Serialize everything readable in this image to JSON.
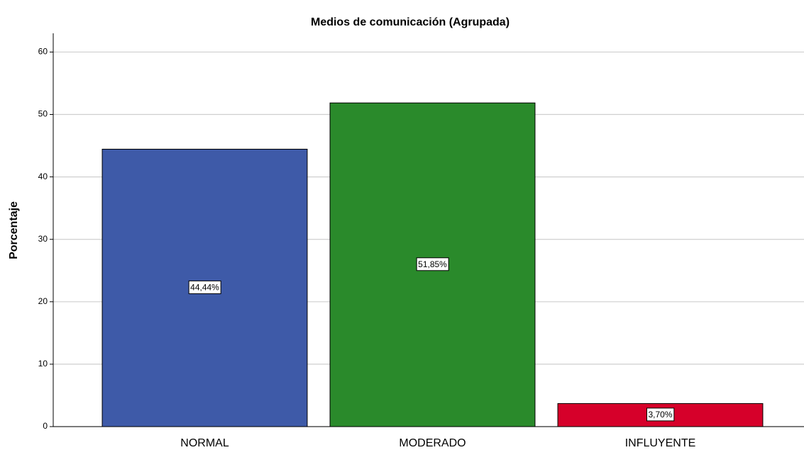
{
  "chart_data": {
    "type": "bar",
    "title": "Medios de comunicación (Agrupada)",
    "y_label": "Porcentaje",
    "categories": [
      "NORMAL",
      "MODERADO",
      "INFLUYENTE"
    ],
    "values": [
      44.44,
      51.85,
      3.7
    ],
    "value_labels": [
      "44,44%",
      "51,85%",
      "3,70%"
    ],
    "colors": [
      "#3e5aa8",
      "#2a8a2b",
      "#d6002a"
    ],
    "ylim": [
      0,
      63
    ],
    "yticks": [
      0,
      10,
      20,
      30,
      40,
      50,
      60
    ],
    "grid": true
  }
}
